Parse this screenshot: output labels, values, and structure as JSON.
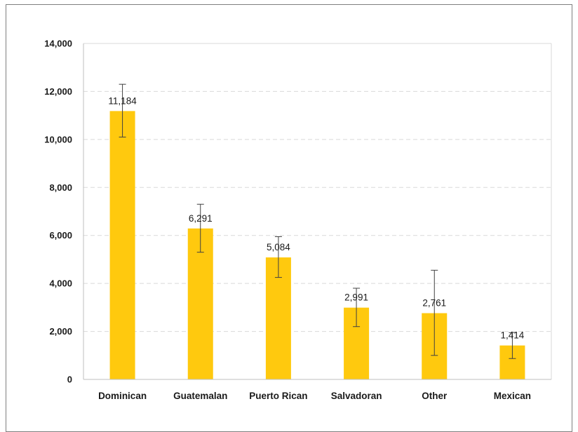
{
  "chart_data": {
    "type": "bar",
    "categories": [
      "Dominican",
      "Guatemalan",
      "Puerto Rican",
      "Salvadoran",
      "Other",
      "Mexican"
    ],
    "values": [
      11184,
      6291,
      5084,
      2991,
      2761,
      1414
    ],
    "value_labels": [
      "11,184",
      "6,291",
      "5,084",
      "2,991",
      "2,761",
      "1,414"
    ],
    "error_bars": [
      {
        "low": 10100,
        "high": 12300
      },
      {
        "low": 5300,
        "high": 7300
      },
      {
        "low": 4250,
        "high": 5950
      },
      {
        "low": 2200,
        "high": 3800
      },
      {
        "low": 1000,
        "high": 4550
      },
      {
        "low": 870,
        "high": 1950
      }
    ],
    "title": "",
    "xlabel": "",
    "ylabel": "",
    "ylim": [
      0,
      14000
    ],
    "yticks": [
      0,
      2000,
      4000,
      6000,
      8000,
      10000,
      12000,
      14000
    ],
    "ytick_labels": [
      "0",
      "2,000",
      "4,000",
      "6,000",
      "8,000",
      "10,000",
      "12,000",
      "14,000"
    ],
    "grid": "horizontal dashed",
    "legend": "none",
    "bar_color": "#FFC90E",
    "error_color": "#404040",
    "grid_color": "#d9d9d9",
    "axis_color": "#bfbfbf"
  }
}
